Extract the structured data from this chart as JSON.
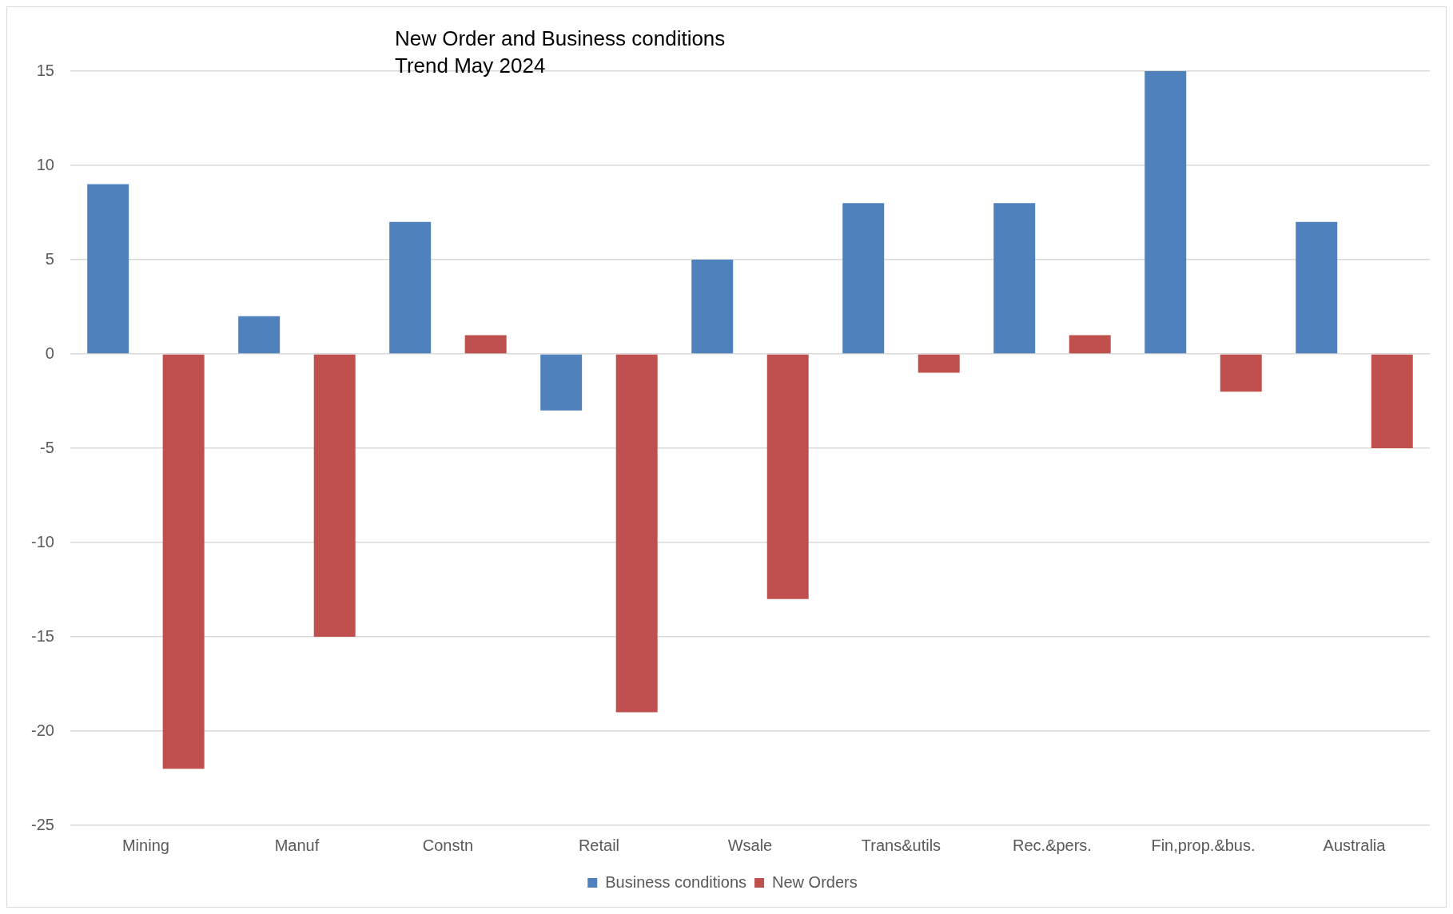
{
  "chart_data": {
    "type": "bar",
    "title": "New Order and Business conditions",
    "subtitle": "Trend May 2024",
    "categories": [
      "Mining",
      "Manuf",
      "Constn",
      "Retail",
      "Wsale",
      "Trans&utils",
      "Rec.&pers.",
      "Fin,prop.&bus.",
      "Australia"
    ],
    "series": [
      {
        "name": "Business conditions",
        "color": "#4f81bd",
        "values": [
          9,
          2,
          7,
          -3,
          5,
          8,
          8,
          15,
          7
        ]
      },
      {
        "name": "New Orders",
        "color": "#c0504d",
        "values": [
          -22,
          -15,
          1,
          -19,
          -13,
          -1,
          1,
          -2,
          -5
        ]
      }
    ],
    "ylim": [
      -25,
      15
    ],
    "yticks": [
      -25,
      -20,
      -15,
      -10,
      -5,
      0,
      5,
      10,
      15
    ],
    "grid": "y",
    "legend": "bottom"
  }
}
